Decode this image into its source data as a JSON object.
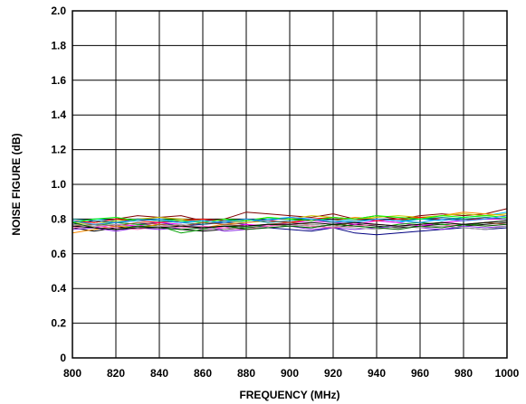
{
  "chart_data": {
    "type": "line",
    "title": "",
    "xlabel": "FREQUENCY (MHz)",
    "ylabel": "NOISE FIGURE (dB)",
    "xlim": [
      800,
      1000
    ],
    "ylim": [
      0,
      2.0
    ],
    "x_ticks": [
      "800",
      "820",
      "840",
      "860",
      "880",
      "900",
      "920",
      "940",
      "960",
      "980",
      "1000"
    ],
    "y_ticks": [
      "0",
      "0.2",
      "0.4",
      "0.6",
      "0.8",
      "1.0",
      "1.2",
      "1.4",
      "1.6",
      "1.8",
      "2.0"
    ],
    "grid": true,
    "legend": "none",
    "x": [
      800,
      810,
      820,
      830,
      840,
      850,
      860,
      870,
      880,
      890,
      900,
      910,
      920,
      930,
      940,
      950,
      960,
      970,
      980,
      990,
      1000
    ],
    "series": [
      {
        "color": "#800000",
        "values": [
          0.79,
          0.78,
          0.8,
          0.82,
          0.81,
          0.82,
          0.79,
          0.8,
          0.84,
          0.83,
          0.82,
          0.81,
          0.83,
          0.8,
          0.82,
          0.8,
          0.82,
          0.83,
          0.82,
          0.83,
          0.86
        ]
      },
      {
        "color": "#000000",
        "values": [
          0.75,
          0.73,
          0.75,
          0.76,
          0.75,
          0.74,
          0.73,
          0.74,
          0.75,
          0.76,
          0.77,
          0.76,
          0.75,
          0.77,
          0.76,
          0.75,
          0.76,
          0.77,
          0.76,
          0.77,
          0.78
        ]
      },
      {
        "color": "#000080",
        "values": [
          0.77,
          0.79,
          0.78,
          0.77,
          0.78,
          0.76,
          0.77,
          0.78,
          0.77,
          0.75,
          0.74,
          0.73,
          0.75,
          0.72,
          0.71,
          0.72,
          0.73,
          0.74,
          0.75,
          0.74,
          0.75
        ]
      },
      {
        "color": "#00bfff",
        "values": [
          0.78,
          0.8,
          0.79,
          0.8,
          0.79,
          0.78,
          0.8,
          0.79,
          0.78,
          0.8,
          0.81,
          0.8,
          0.79,
          0.8,
          0.79,
          0.78,
          0.8,
          0.79,
          0.81,
          0.82,
          0.84
        ]
      },
      {
        "color": "#ff00ff",
        "values": [
          0.76,
          0.75,
          0.77,
          0.76,
          0.78,
          0.77,
          0.74,
          0.75,
          0.77,
          0.76,
          0.78,
          0.79,
          0.78,
          0.77,
          0.79,
          0.78,
          0.76,
          0.78,
          0.79,
          0.8,
          0.8
        ]
      },
      {
        "color": "#00a000",
        "values": [
          0.77,
          0.76,
          0.78,
          0.77,
          0.76,
          0.72,
          0.74,
          0.76,
          0.75,
          0.77,
          0.76,
          0.75,
          0.77,
          0.76,
          0.75,
          0.77,
          0.78,
          0.77,
          0.76,
          0.78,
          0.79
        ]
      },
      {
        "color": "#ff8c00",
        "values": [
          0.72,
          0.74,
          0.76,
          0.75,
          0.77,
          0.76,
          0.75,
          0.77,
          0.78,
          0.79,
          0.78,
          0.8,
          0.79,
          0.81,
          0.8,
          0.79,
          0.81,
          0.82,
          0.84,
          0.83,
          0.82
        ]
      },
      {
        "color": "#c8c800",
        "values": [
          0.78,
          0.77,
          0.79,
          0.8,
          0.81,
          0.8,
          0.79,
          0.78,
          0.79,
          0.81,
          0.8,
          0.82,
          0.81,
          0.8,
          0.81,
          0.82,
          0.81,
          0.82,
          0.83,
          0.82,
          0.83
        ]
      },
      {
        "color": "#8a2be2",
        "values": [
          0.74,
          0.75,
          0.73,
          0.75,
          0.74,
          0.75,
          0.76,
          0.73,
          0.74,
          0.75,
          0.76,
          0.74,
          0.75,
          0.74,
          0.75,
          0.76,
          0.75,
          0.74,
          0.76,
          0.75,
          0.76
        ]
      },
      {
        "color": "#ff0000",
        "values": [
          0.79,
          0.78,
          0.8,
          0.79,
          0.78,
          0.79,
          0.8,
          0.79,
          0.8,
          0.79,
          0.78,
          0.8,
          0.81,
          0.8,
          0.79,
          0.8,
          0.81,
          0.8,
          0.79,
          0.81,
          0.8
        ]
      },
      {
        "color": "#008b8b",
        "values": [
          0.8,
          0.79,
          0.78,
          0.8,
          0.79,
          0.78,
          0.77,
          0.79,
          0.8,
          0.78,
          0.79,
          0.8,
          0.78,
          0.79,
          0.8,
          0.79,
          0.8,
          0.81,
          0.8,
          0.81,
          0.8
        ]
      },
      {
        "color": "#00ff00",
        "values": [
          0.78,
          0.8,
          0.81,
          0.79,
          0.8,
          0.79,
          0.78,
          0.8,
          0.79,
          0.81,
          0.8,
          0.79,
          0.81,
          0.8,
          0.82,
          0.81,
          0.8,
          0.82,
          0.81,
          0.82,
          0.81
        ]
      },
      {
        "color": "#a0522d",
        "values": [
          0.76,
          0.77,
          0.76,
          0.78,
          0.77,
          0.76,
          0.78,
          0.77,
          0.76,
          0.77,
          0.78,
          0.77,
          0.76,
          0.78,
          0.77,
          0.76,
          0.77,
          0.78,
          0.77,
          0.78,
          0.77
        ]
      },
      {
        "color": "#1e90ff",
        "values": [
          0.79,
          0.77,
          0.78,
          0.79,
          0.8,
          0.78,
          0.79,
          0.78,
          0.8,
          0.79,
          0.81,
          0.8,
          0.79,
          0.78,
          0.8,
          0.79,
          0.78,
          0.8,
          0.79,
          0.8,
          0.82
        ]
      },
      {
        "color": "#ff69b4",
        "values": [
          0.75,
          0.76,
          0.75,
          0.74,
          0.76,
          0.75,
          0.76,
          0.75,
          0.74,
          0.76,
          0.77,
          0.76,
          0.75,
          0.76,
          0.77,
          0.76,
          0.75,
          0.76,
          0.77,
          0.76,
          0.77
        ]
      },
      {
        "color": "#a0a0a0",
        "values": [
          0.77,
          0.76,
          0.77,
          0.75,
          0.76,
          0.77,
          0.75,
          0.74,
          0.76,
          0.75,
          0.76,
          0.77,
          0.76,
          0.75,
          0.74,
          0.76,
          0.75,
          0.76,
          0.75,
          0.74,
          0.76
        ]
      },
      {
        "color": "#006400",
        "values": [
          0.78,
          0.75,
          0.74,
          0.76,
          0.75,
          0.74,
          0.75,
          0.76,
          0.74,
          0.75,
          0.76,
          0.75,
          0.77,
          0.76,
          0.75,
          0.74,
          0.76,
          0.75,
          0.77,
          0.76,
          0.77
        ]
      },
      {
        "color": "#000000",
        "values": [
          0.76,
          0.75,
          0.74,
          0.75,
          0.75,
          0.76,
          0.75,
          0.76,
          0.76,
          0.77,
          0.77,
          0.78,
          0.77,
          0.78,
          0.77,
          0.76,
          0.77,
          0.78,
          0.77,
          0.78,
          0.79
        ]
      }
    ]
  }
}
